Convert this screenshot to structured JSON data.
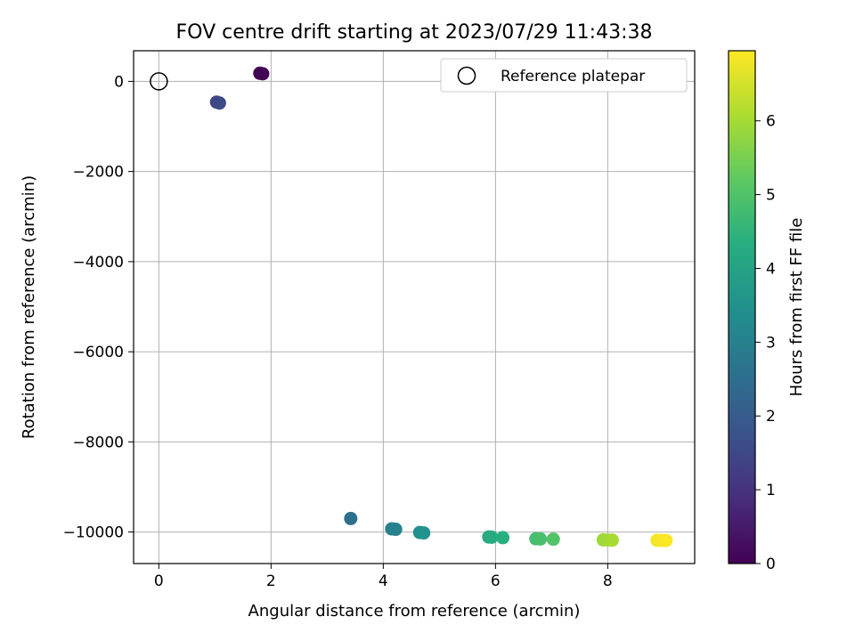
{
  "chart_data": {
    "type": "scatter",
    "title": "FOV centre drift starting at 2023/07/29 11:43:38",
    "xlabel": "Angular distance from reference (arcmin)",
    "ylabel": "Rotation from reference (arcmin)",
    "xlim": [
      -0.45,
      9.55
    ],
    "ylim": [
      -10700,
      680
    ],
    "xticks": [
      0,
      2,
      4,
      6,
      8
    ],
    "yticks": [
      0,
      -2000,
      -4000,
      -6000,
      -8000,
      -10000
    ],
    "xtick_labels": [
      "0",
      "2",
      "4",
      "6",
      "8"
    ],
    "ytick_labels": [
      "0",
      "−2000",
      "−4000",
      "−6000",
      "−8000",
      "−10000"
    ],
    "grid": true,
    "legend": {
      "position": "top-right",
      "entries": [
        "Reference platepar"
      ]
    },
    "reference_point": {
      "x": 0,
      "y": 0
    },
    "colorbar": {
      "label": "Hours from first FF file",
      "range": [
        0,
        6.95
      ],
      "ticks": [
        0,
        1,
        2,
        3,
        4,
        5,
        6
      ],
      "tick_labels": [
        "0",
        "1",
        "2",
        "3",
        "4",
        "5",
        "6"
      ],
      "colormap": "viridis"
    },
    "points": [
      {
        "x": 1.8,
        "y": 180,
        "c": 0.0
      },
      {
        "x": 1.85,
        "y": 170,
        "c": 0.05
      },
      {
        "x": 1.03,
        "y": -460,
        "c": 1.48
      },
      {
        "x": 1.08,
        "y": -480,
        "c": 1.52
      },
      {
        "x": 3.42,
        "y": -9700,
        "c": 2.55
      },
      {
        "x": 4.15,
        "y": -9930,
        "c": 3.02
      },
      {
        "x": 4.22,
        "y": -9940,
        "c": 3.06
      },
      {
        "x": 4.65,
        "y": -10010,
        "c": 3.45
      },
      {
        "x": 4.72,
        "y": -10020,
        "c": 3.5
      },
      {
        "x": 5.88,
        "y": -10110,
        "c": 4.22
      },
      {
        "x": 5.93,
        "y": -10115,
        "c": 4.26
      },
      {
        "x": 6.13,
        "y": -10125,
        "c": 4.36
      },
      {
        "x": 6.72,
        "y": -10150,
        "c": 4.82
      },
      {
        "x": 6.8,
        "y": -10155,
        "c": 4.88
      },
      {
        "x": 7.03,
        "y": -10160,
        "c": 5.03
      },
      {
        "x": 7.92,
        "y": -10175,
        "c": 5.9
      },
      {
        "x": 8.0,
        "y": -10178,
        "c": 5.96
      },
      {
        "x": 8.08,
        "y": -10180,
        "c": 6.02
      },
      {
        "x": 8.88,
        "y": -10185,
        "c": 6.82
      },
      {
        "x": 8.96,
        "y": -10187,
        "c": 6.88
      },
      {
        "x": 9.04,
        "y": -10188,
        "c": 6.94
      }
    ]
  }
}
